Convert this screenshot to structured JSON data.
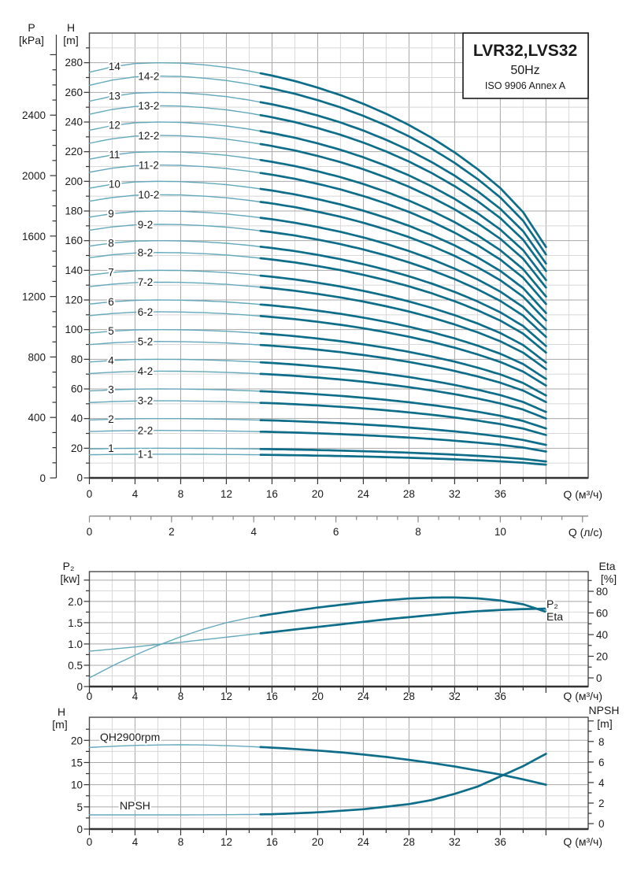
{
  "title_box": {
    "model": "LVR32,LVS32",
    "frequency": "50Hz",
    "standard": "ISO 9906 Annex A"
  },
  "colors": {
    "background": "#ffffff",
    "curve_light": "#63a9bb",
    "curve_dark": "#0e6d89",
    "grid_minor": "#d8d8d8",
    "grid_major": "#a8a8a8",
    "frame": "#4a4a4a",
    "axis": "#333333",
    "secondary_axis": "#8a8a8a",
    "text": "#1b1b1b"
  },
  "chart_data": [
    {
      "id": "qh-curve-family",
      "type": "line",
      "x_axis": {
        "label": "Q (м³/ч)",
        "tick_labels": [
          0,
          4,
          8,
          12,
          16,
          20,
          24,
          28,
          32,
          36
        ],
        "tick_step_minor": 2,
        "range": [
          0,
          43.7
        ],
        "curves_end_q": 40
      },
      "x_axis_secondary": {
        "label": "Q (л/с)",
        "tick_labels": [
          0,
          2,
          4,
          6,
          8,
          10
        ],
        "tick_step_minor": 0.5,
        "m3h_per_unit": 3.6
      },
      "y_axis_left_outer": {
        "title": "P",
        "unit": "[kPa]",
        "tick_labels": [
          0,
          400,
          800,
          1200,
          1600,
          2000,
          2400
        ],
        "tick_step_minor": 100,
        "kpa_per_m": 9.81
      },
      "y_axis_left": {
        "title": "H",
        "unit": "[m]",
        "tick_labels": [
          0,
          20,
          40,
          60,
          80,
          100,
          120,
          140,
          160,
          180,
          200,
          220,
          240,
          260,
          280
        ],
        "tick_step_minor": 10,
        "range": [
          0,
          300
        ]
      },
      "thick_from_q": 15,
      "curve_shape": {
        "q": [
          0,
          2,
          4,
          6,
          8,
          10,
          12,
          14,
          16,
          18,
          20,
          22,
          24,
          26,
          28,
          30,
          32,
          34,
          36,
          38,
          40
        ],
        "s": [
          0.977,
          0.99,
          0.998,
          1.0,
          0.999,
          0.995,
          0.989,
          0.98,
          0.969,
          0.956,
          0.94,
          0.922,
          0.901,
          0.877,
          0.85,
          0.819,
          0.784,
          0.744,
          0.698,
          0.64,
          0.556
        ]
      },
      "curves": [
        {
          "label": "1",
          "peak_m": 20,
          "label_q": 1.9
        },
        {
          "label": "1-1",
          "peak_m": 16,
          "label_q": 4.9
        },
        {
          "label": "2",
          "peak_m": 40,
          "label_q": 1.9
        },
        {
          "label": "2-2",
          "peak_m": 32,
          "label_q": 4.9
        },
        {
          "label": "3",
          "peak_m": 60,
          "label_q": 1.9
        },
        {
          "label": "3-2",
          "peak_m": 52,
          "label_q": 4.9
        },
        {
          "label": "4",
          "peak_m": 80,
          "label_q": 1.9
        },
        {
          "label": "4-2",
          "peak_m": 72,
          "label_q": 4.9
        },
        {
          "label": "5",
          "peak_m": 100,
          "label_q": 1.9
        },
        {
          "label": "5-2",
          "peak_m": 92,
          "label_q": 4.9
        },
        {
          "label": "6",
          "peak_m": 120,
          "label_q": 1.9
        },
        {
          "label": "6-2",
          "peak_m": 112,
          "label_q": 4.9
        },
        {
          "label": "7",
          "peak_m": 140,
          "label_q": 1.9
        },
        {
          "label": "7-2",
          "peak_m": 132,
          "label_q": 4.9
        },
        {
          "label": "8",
          "peak_m": 160,
          "label_q": 1.9
        },
        {
          "label": "8-2",
          "peak_m": 152,
          "label_q": 4.9
        },
        {
          "label": "9",
          "peak_m": 180,
          "label_q": 1.9
        },
        {
          "label": "9-2",
          "peak_m": 171,
          "label_q": 4.9
        },
        {
          "label": "10",
          "peak_m": 200,
          "label_q": 2.2
        },
        {
          "label": "10-2",
          "peak_m": 191,
          "label_q": 5.2
        },
        {
          "label": "11",
          "peak_m": 220,
          "label_q": 2.2
        },
        {
          "label": "11-2",
          "peak_m": 211,
          "label_q": 5.2
        },
        {
          "label": "12",
          "peak_m": 240,
          "label_q": 2.2
        },
        {
          "label": "12-2",
          "peak_m": 231,
          "label_q": 5.2
        },
        {
          "label": "13",
          "peak_m": 260,
          "label_q": 2.2
        },
        {
          "label": "13-2",
          "peak_m": 251,
          "label_q": 5.2
        },
        {
          "label": "14",
          "peak_m": 280,
          "label_q": 2.2
        },
        {
          "label": "14-2",
          "peak_m": 271,
          "label_q": 5.2
        }
      ]
    },
    {
      "id": "power-efficiency",
      "type": "line",
      "x_axis": {
        "label": "Q (м³/ч)",
        "tick_labels": [
          0,
          4,
          8,
          12,
          16,
          20,
          24,
          28,
          32,
          36
        ],
        "tick_step_minor": 2,
        "range": [
          0,
          43.7
        ]
      },
      "y_axis_left": {
        "title": "P₂",
        "unit": "[kw]",
        "tick_labels": [
          "0",
          "0.5",
          "1.0",
          "1.5",
          "2.0"
        ],
        "tick_values": [
          0,
          0.5,
          1.0,
          1.5,
          2.0
        ],
        "tick_step_minor": 0.25,
        "range": [
          0,
          2.7
        ]
      },
      "y_axis_right": {
        "title": "Eta",
        "unit": "[%]",
        "tick_labels": [
          0,
          20,
          40,
          60,
          80
        ],
        "tick_step_minor": 10,
        "range": [
          -8,
          98.2
        ]
      },
      "thick_from_q": 15,
      "series": [
        {
          "name": "P2",
          "label": "P₂",
          "axis": "left",
          "q": [
            0,
            2,
            4,
            6,
            8,
            10,
            12,
            14,
            16,
            18,
            20,
            22,
            24,
            26,
            28,
            30,
            32,
            34,
            36,
            38,
            40
          ],
          "v": [
            0.83,
            0.88,
            0.93,
            0.99,
            1.04,
            1.1,
            1.16,
            1.22,
            1.28,
            1.34,
            1.4,
            1.46,
            1.52,
            1.58,
            1.63,
            1.68,
            1.73,
            1.77,
            1.8,
            1.82,
            1.83
          ]
        },
        {
          "name": "Eta",
          "label": "Eta",
          "axis": "right",
          "q": [
            0,
            2,
            4,
            6,
            8,
            10,
            12,
            14,
            16,
            18,
            20,
            22,
            24,
            26,
            28,
            30,
            32,
            34,
            36,
            38,
            40
          ],
          "v": [
            0,
            11,
            21,
            30,
            38,
            45,
            51,
            55.5,
            59,
            62,
            65,
            67.5,
            69.8,
            71.8,
            73.3,
            74.2,
            74.3,
            73.5,
            71.5,
            68,
            61
          ]
        }
      ]
    },
    {
      "id": "qh2900-npsh",
      "type": "line",
      "x_axis": {
        "label": "Q (м³/ч)",
        "tick_labels": [
          0,
          4,
          8,
          12,
          16,
          20,
          24,
          28,
          32,
          36
        ],
        "tick_step_minor": 2,
        "range": [
          0,
          43.7
        ]
      },
      "y_axis_left": {
        "title": "H",
        "unit": "[m]",
        "tick_labels": [
          0,
          5,
          10,
          15,
          20
        ],
        "tick_step_minor": 2.5,
        "range": [
          0,
          25.2
        ]
      },
      "y_axis_right": {
        "title": "NPSH",
        "unit": "[m]",
        "tick_labels": [
          0,
          2,
          4,
          6,
          8
        ],
        "tick_step_minor": 1,
        "range": [
          -0.53,
          10.36
        ]
      },
      "thick_from_q": 15,
      "series": [
        {
          "name": "QH",
          "label": "QH2900rpm",
          "axis": "left",
          "q": [
            0,
            2,
            4,
            6,
            8,
            10,
            12,
            14,
            16,
            18,
            20,
            22,
            24,
            26,
            28,
            30,
            32,
            34,
            36,
            38,
            40
          ],
          "v": [
            18.4,
            18.65,
            18.85,
            18.95,
            19.0,
            18.95,
            18.8,
            18.6,
            18.35,
            18.05,
            17.7,
            17.3,
            16.8,
            16.25,
            15.6,
            14.9,
            14.1,
            13.2,
            12.3,
            11.2,
            10.0
          ]
        },
        {
          "name": "NPSH",
          "label": "NPSH",
          "axis": "right",
          "q": [
            0,
            2,
            4,
            6,
            8,
            10,
            12,
            14,
            16,
            18,
            20,
            22,
            24,
            26,
            28,
            30,
            32,
            34,
            36,
            38,
            40
          ],
          "v": [
            0.85,
            0.85,
            0.85,
            0.85,
            0.85,
            0.86,
            0.87,
            0.89,
            0.92,
            1.0,
            1.1,
            1.25,
            1.4,
            1.65,
            1.9,
            2.3,
            2.9,
            3.6,
            4.6,
            5.6,
            6.8
          ]
        }
      ]
    }
  ]
}
